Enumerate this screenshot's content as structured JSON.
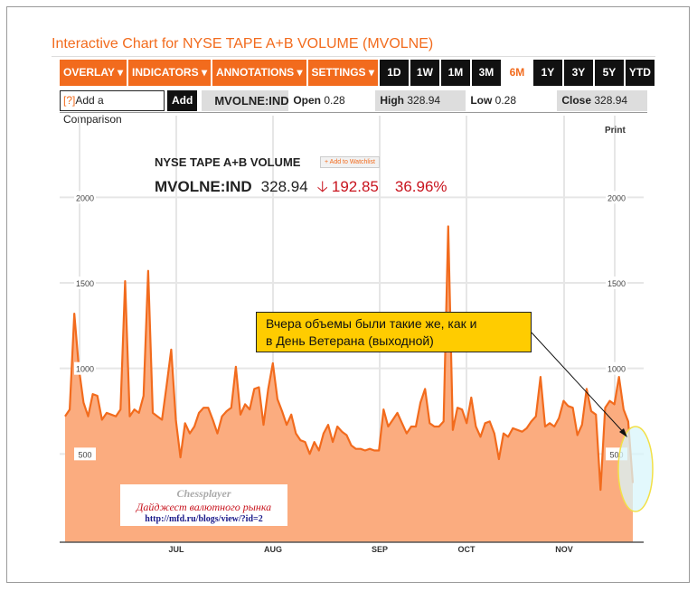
{
  "page_title": "Interactive Chart for NYSE TAPE A+B VOLUME (MVOLNE)",
  "toolbar": {
    "menus": [
      "OVERLAY ▾",
      "INDICATORS ▾",
      "ANNOTATIONS ▾",
      "SETTINGS ▾"
    ],
    "ranges": [
      "1D",
      "1W",
      "1M",
      "3M",
      "6M",
      "1Y",
      "3Y",
      "5Y",
      "YTD"
    ],
    "selected_range": "6M"
  },
  "info": {
    "help": "[?]",
    "comparison_label": "Add a Comparison",
    "add": "Add",
    "symbol": "MVOLNE:IND",
    "open_label": "Open",
    "open": "0.28",
    "high_label": "High",
    "high": "328.94",
    "low_label": "Low",
    "low": "0.28",
    "close_label": "Close",
    "close": "328.94"
  },
  "print": "Print",
  "quote": {
    "name": "NYSE TAPE A+B VOLUME",
    "watchlist": "Add to Watchlist",
    "ticker": "MVOLNE:IND",
    "price": "328.94",
    "change": "192.85",
    "change_pct": "36.96%",
    "direction": "down"
  },
  "annotation": {
    "text_line1": "Вчера объемы были такие же, как и",
    "text_line2": "в День Ветерана (выходной)"
  },
  "watermark": {
    "line1": "Chessplayer",
    "line2": "Дайджест валютного рынка",
    "line3": "http://mfd.ru/blogs/view/?id=2"
  },
  "colors": {
    "accent": "#f26b1d",
    "line": "#f26b1d",
    "fill": "#fbac7f",
    "callout": "#ffcc00",
    "down": "#c8141e"
  },
  "chart_data": {
    "type": "area",
    "ylim": [
      0,
      2200
    ],
    "y_ticks": [
      500,
      1000,
      1500,
      2000
    ],
    "x_month_labels": [
      "JUL",
      "AUG",
      "SEP",
      "OCT",
      "NOV"
    ],
    "grid": true,
    "values": [
      720,
      760,
      1320,
      1000,
      800,
      720,
      850,
      840,
      700,
      740,
      730,
      720,
      760,
      1510,
      720,
      760,
      740,
      840,
      1570,
      740,
      720,
      700,
      900,
      1110,
      700,
      480,
      680,
      620,
      660,
      740,
      770,
      770,
      700,
      620,
      720,
      750,
      770,
      1010,
      730,
      790,
      760,
      880,
      890,
      670,
      880,
      1030,
      820,
      750,
      670,
      730,
      620,
      580,
      570,
      500,
      570,
      520,
      620,
      670,
      570,
      660,
      630,
      610,
      550,
      530,
      530,
      520,
      530,
      520,
      520,
      760,
      660,
      700,
      740,
      680,
      620,
      660,
      660,
      800,
      880,
      680,
      660,
      660,
      690,
      1830,
      640,
      770,
      760,
      680,
      830,
      660,
      600,
      680,
      690,
      620,
      470,
      620,
      600,
      650,
      640,
      630,
      650,
      690,
      720,
      950,
      660,
      680,
      660,
      710,
      810,
      780,
      770,
      610,
      670,
      880,
      750,
      730,
      290,
      770,
      810,
      790,
      950,
      760,
      690,
      330
    ]
  }
}
